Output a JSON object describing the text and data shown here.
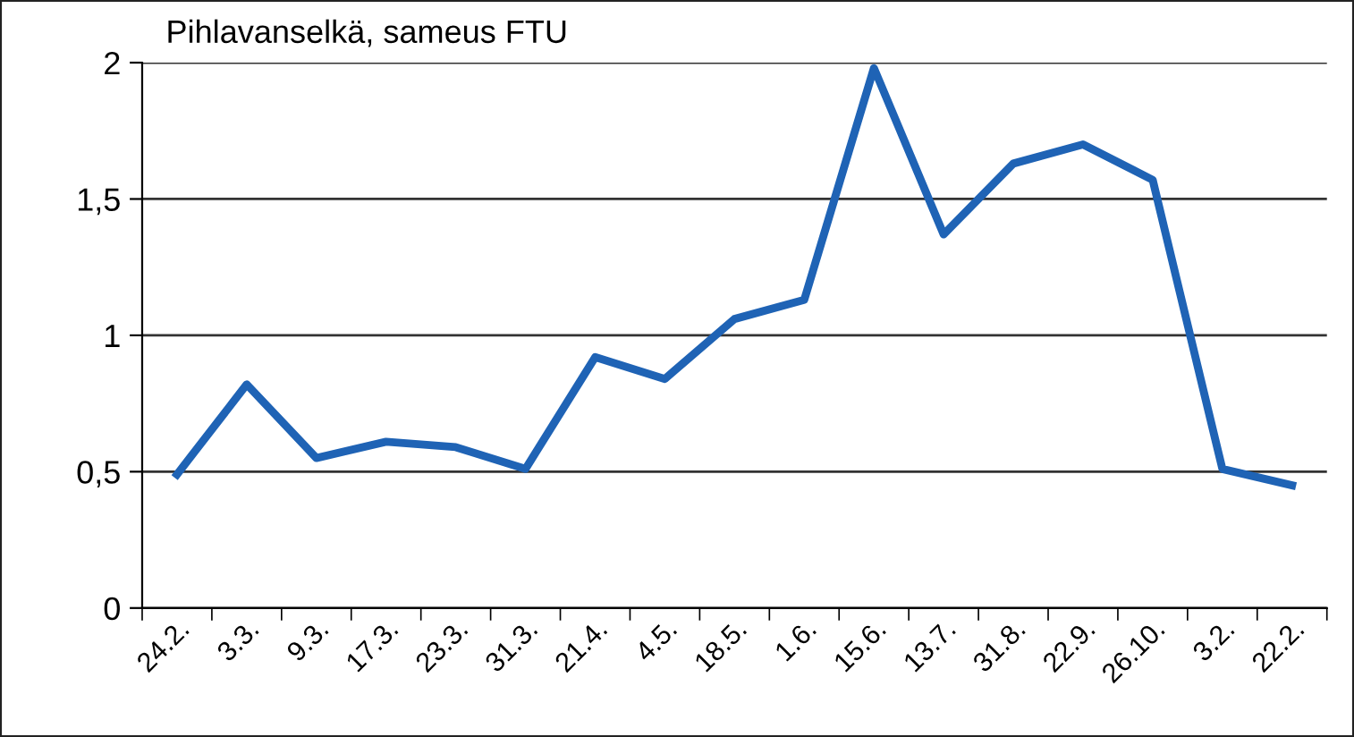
{
  "chart_data": {
    "type": "line",
    "title": "Pihlavanselkä, sameus FTU",
    "categories": [
      "24.2.",
      "3.3.",
      "9.3.",
      "17.3.",
      "23.3.",
      "31.3.",
      "21.4.",
      "4.5.",
      "18.5.",
      "1.6.",
      "15.6.",
      "13.7.",
      "31.8.",
      "22.9.",
      "26.10.",
      "3.2.",
      "22.2."
    ],
    "series": [
      {
        "color": "#1f63b5",
        "values": [
          0.49,
          0.82,
          0.55,
          0.61,
          0.59,
          0.51,
          0.92,
          0.84,
          1.06,
          1.13,
          1.98,
          1.37,
          1.63,
          1.7,
          1.57,
          0.51,
          0.45
        ]
      }
    ],
    "ylim": [
      0,
      2
    ],
    "yticks": [
      0,
      {
        "value": 0.5,
        "label": "0,5"
      },
      1,
      {
        "value": 1.5,
        "label": "1,5"
      },
      2
    ],
    "grid": "y",
    "legend": false,
    "marker": "none",
    "line_style": "solid"
  }
}
